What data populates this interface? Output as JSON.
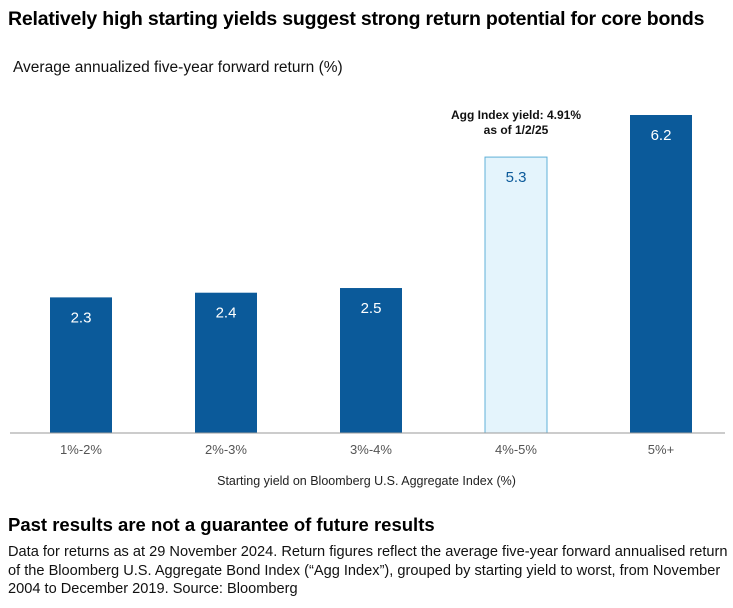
{
  "chart_data": {
    "type": "bar",
    "title": "Relatively high starting yields suggest strong return potential for core bonds",
    "subtitle": "Average annualized five-year forward return (%)",
    "xlabel": "Starting yield on Bloomberg U.S. Aggregate Index (%)",
    "ylabel": "",
    "categories": [
      "1%-2%",
      "2%-3%",
      "3%-4%",
      "4%-5%",
      "5%+"
    ],
    "values": [
      2.3,
      2.4,
      2.5,
      5.3,
      6.2
    ],
    "ylim": [
      -0.6,
      6.2
    ],
    "highlight_index": 3,
    "annotation": {
      "index": 3,
      "lines": [
        "Agg Index yield: 4.91%",
        "as of 1/2/25"
      ]
    },
    "colors": {
      "bar": "#0b5a9a",
      "highlight_fill": "#e4f4fc",
      "highlight_stroke": "#5fb0d8",
      "axis": "#9a9a9a"
    },
    "grid": false,
    "legend": "none"
  },
  "disclaimer": {
    "heading": "Past results are not a guarantee of future results",
    "body": "Data for returns as at 29 November 2024. Return figures reflect the average five-year forward annualised return of the Bloomberg U.S. Aggregate Bond Index (“Agg Index”), grouped by starting yield to worst, from November 2004 to December 2019. Source: Bloomberg"
  }
}
